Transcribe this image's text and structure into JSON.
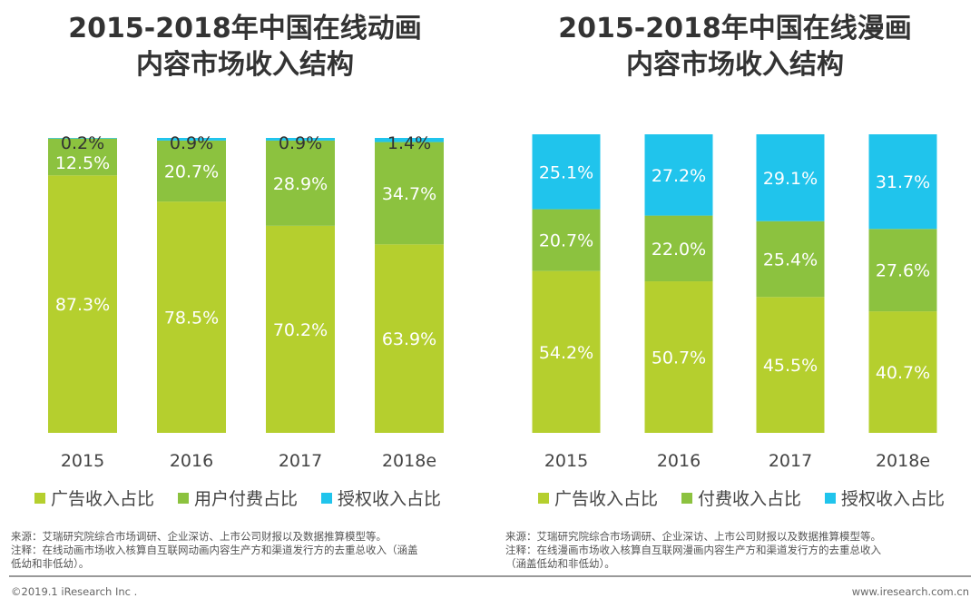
{
  "chart_data": [
    {
      "type": "bar",
      "stacked": true,
      "title": "2015-2018年中国在线动画内容市场收入结构",
      "title_lines": [
        "2015-2018年中国在线动画",
        "内容市场收入结构"
      ],
      "categories": [
        "2015",
        "2016",
        "2017",
        "2018e"
      ],
      "series": [
        {
          "name": "广告收入占比",
          "color": "#b5cf2e",
          "values": [
            87.3,
            78.5,
            70.2,
            63.9
          ]
        },
        {
          "name": "用户付费占比",
          "color": "#8cc23f",
          "values": [
            12.5,
            20.7,
            28.9,
            34.7
          ]
        },
        {
          "name": "授权收入占比",
          "color": "#20c4ec",
          "values": [
            0.2,
            0.9,
            0.9,
            1.4
          ]
        }
      ],
      "unit": "%",
      "ylim": [
        0,
        100
      ],
      "grid": false,
      "legend": "bottom"
    },
    {
      "type": "bar",
      "stacked": true,
      "title": "2015-2018年中国在线漫画内容市场收入结构",
      "title_lines": [
        "2015-2018年中国在线漫画",
        "内容市场收入结构"
      ],
      "categories": [
        "2015",
        "2016",
        "2017",
        "2018e"
      ],
      "series": [
        {
          "name": "广告收入占比",
          "color": "#b5cf2e",
          "values": [
            54.2,
            50.7,
            45.5,
            40.7
          ]
        },
        {
          "name": "付费收入占比",
          "color": "#8cc23f",
          "values": [
            20.7,
            22.0,
            25.4,
            27.6
          ]
        },
        {
          "name": "授权收入占比",
          "color": "#20c4ec",
          "values": [
            25.1,
            27.2,
            29.1,
            31.7
          ]
        }
      ],
      "unit": "%",
      "ylim": [
        0,
        100
      ],
      "grid": false,
      "legend": "bottom"
    }
  ],
  "notes": {
    "left": [
      "来源：艾瑞研究院综合市场调研、企业深访、上市公司财报以及数据推算模型等。",
      "注释：在线动画市场收入核算自互联网动画内容生产方和渠道发行方的去重总收入（涵盖",
      "低幼和非低幼）。"
    ],
    "right": [
      "来源：艾瑞研究院综合市场调研、企业深访、上市公司财报以及数据推算模型等。",
      "注释：在线漫画市场收入核算自互联网漫画内容生产方和渠道发行方的去重总收入",
      "（涵盖低幼和非低幼）。"
    ]
  },
  "footer": {
    "copyright": "©2019.1 iResearch Inc .",
    "website": "www.iresearch.com.cn"
  }
}
